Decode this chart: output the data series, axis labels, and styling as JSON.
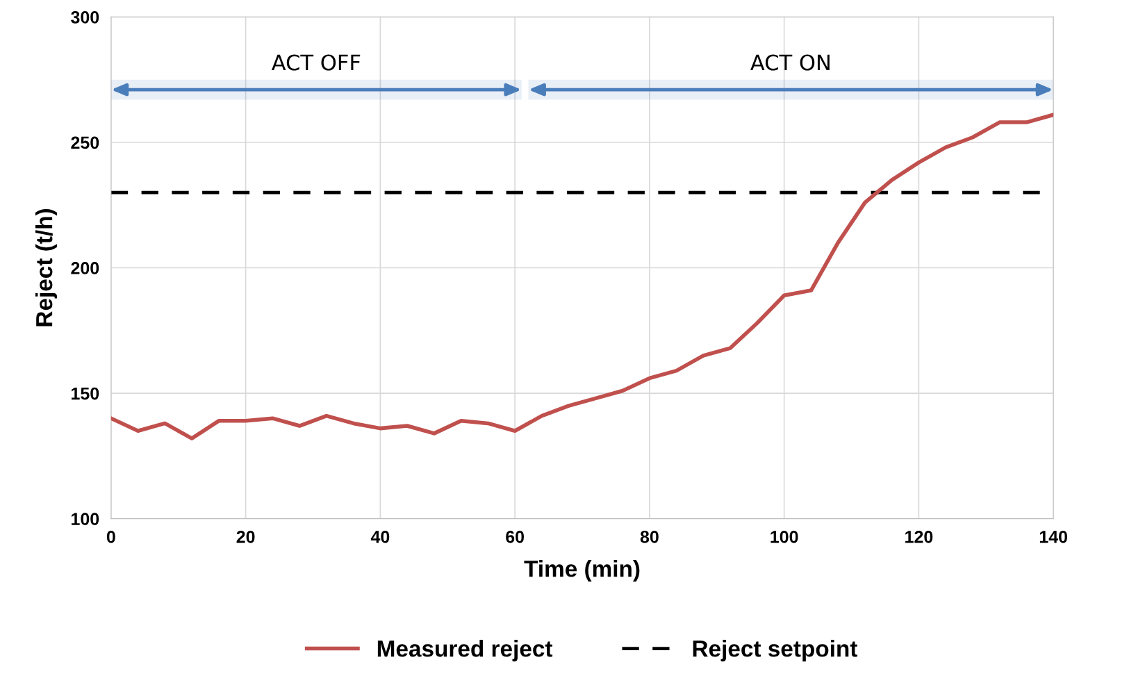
{
  "chart_data": {
    "type": "line",
    "xlabel": "Time (min)",
    "ylabel": "Reject (t/h)",
    "x": [
      0,
      4,
      8,
      12,
      16,
      20,
      24,
      28,
      32,
      36,
      40,
      44,
      48,
      52,
      56,
      60,
      64,
      68,
      72,
      76,
      80,
      84,
      88,
      92,
      96,
      100,
      104,
      108,
      112,
      116,
      120,
      124,
      128,
      132,
      136,
      140
    ],
    "series": [
      {
        "name": "Measured reject",
        "color": "#c0504d",
        "values": [
          140,
          135,
          138,
          132,
          139,
          139,
          140,
          137,
          141,
          138,
          136,
          137,
          134,
          139,
          138,
          135,
          141,
          145,
          148,
          151,
          156,
          159,
          165,
          168,
          178,
          189,
          191,
          210,
          226,
          235,
          242,
          248,
          252,
          258,
          258,
          261
        ]
      }
    ],
    "ref_lines": [
      {
        "axis": "y",
        "value": 230,
        "label": "Reject setpoint",
        "color": "#000000",
        "line_style": "dashed"
      }
    ],
    "bands": [
      {
        "axis": "x",
        "from": 0,
        "to": 61,
        "label": "ACT OFF",
        "color": "#4a7ebb"
      },
      {
        "axis": "x",
        "from": 62,
        "to": 140,
        "label": "ACT ON",
        "color": "#4a7ebb"
      }
    ],
    "xlim": [
      0,
      140
    ],
    "ylim": [
      100,
      300
    ],
    "xticks": [
      0,
      20,
      40,
      60,
      80,
      100,
      120,
      140
    ],
    "yticks": [
      100,
      150,
      200,
      250,
      300
    ],
    "grid": true,
    "legend": "bottom",
    "marker": "none",
    "line_style": "solid"
  }
}
